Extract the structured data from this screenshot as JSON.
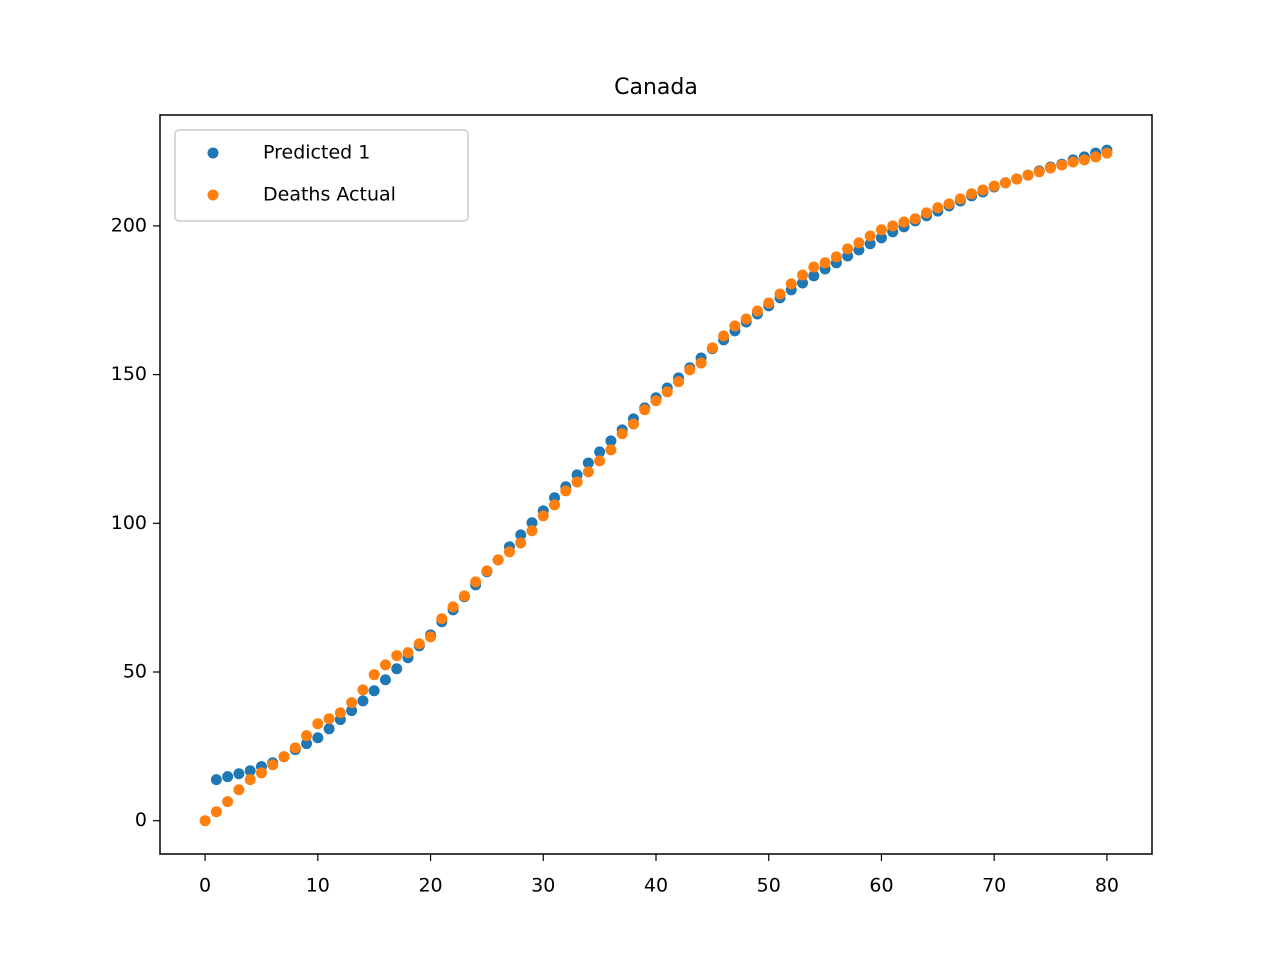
{
  "chart_data": {
    "type": "scatter",
    "title": "Canada",
    "xlim": [
      -4,
      84
    ],
    "xticks": [
      0,
      10,
      20,
      30,
      40,
      50,
      60,
      70,
      80
    ],
    "ylim": [
      -11.2,
      237.3
    ],
    "yticks": [
      0,
      50,
      100,
      150,
      200
    ],
    "legend": "upper left",
    "series": [
      {
        "name": "Predicted 1",
        "color": "#1f77b4",
        "x": [
          1,
          2,
          3,
          4,
          5,
          6,
          7,
          8,
          9,
          10,
          11,
          12,
          13,
          14,
          15,
          16,
          17,
          18,
          19,
          20,
          21,
          22,
          23,
          24,
          25,
          26,
          27,
          28,
          29,
          30,
          31,
          32,
          33,
          34,
          35,
          36,
          37,
          38,
          39,
          40,
          41,
          42,
          43,
          44,
          45,
          46,
          47,
          48,
          49,
          50,
          51,
          52,
          53,
          54,
          55,
          56,
          57,
          58,
          59,
          60,
          61,
          62,
          63,
          64,
          65,
          66,
          67,
          68,
          69,
          70,
          71,
          72,
          73,
          74,
          75,
          76,
          77,
          78,
          79,
          80
        ],
        "values": [
          13.8,
          14.8,
          15.8,
          16.8,
          18.2,
          19.5,
          21.5,
          23.9,
          25.9,
          27.9,
          30.9,
          34,
          37,
          40.3,
          43.7,
          47.4,
          51.1,
          54.8,
          58.8,
          62.5,
          66.9,
          70.9,
          75.3,
          79.3,
          83.7,
          87.7,
          92.1,
          96.1,
          100.2,
          104.2,
          108.6,
          112.3,
          116.3,
          120.3,
          124,
          127.7,
          131.4,
          135.1,
          138.8,
          142.2,
          145.5,
          148.9,
          152.3,
          155.6,
          158.7,
          161.7,
          164.7,
          167.7,
          170.4,
          173.1,
          175.8,
          178.5,
          180.8,
          183.2,
          185.5,
          187.6,
          189.9,
          191.9,
          194,
          196,
          198,
          199.7,
          201.7,
          203.4,
          205,
          206.7,
          208.4,
          210.1,
          211.4,
          213.1,
          214.5,
          215.8,
          217.1,
          218.5,
          219.8,
          220.8,
          222.2,
          223.2,
          224.5,
          225.5
        ]
      },
      {
        "name": "Deaths Actual",
        "color": "#ff7f0e",
        "x": [
          0,
          1,
          2,
          3,
          4,
          5,
          6,
          7,
          8,
          9,
          10,
          11,
          12,
          13,
          14,
          15,
          16,
          17,
          18,
          19,
          20,
          21,
          22,
          23,
          24,
          25,
          26,
          27,
          28,
          29,
          30,
          31,
          32,
          33,
          34,
          35,
          36,
          37,
          38,
          39,
          40,
          41,
          42,
          43,
          44,
          45,
          46,
          47,
          48,
          49,
          50,
          51,
          52,
          53,
          54,
          55,
          56,
          57,
          58,
          59,
          60,
          61,
          62,
          63,
          64,
          65,
          66,
          67,
          68,
          69,
          70,
          71,
          72,
          73,
          74,
          75,
          76,
          77,
          78,
          79,
          80
        ],
        "values": [
          0,
          3,
          6.4,
          10.4,
          13.8,
          16.1,
          18.8,
          21.5,
          24.5,
          28.6,
          32.6,
          34.3,
          36.3,
          39.7,
          44,
          49.1,
          52.4,
          55.5,
          56.5,
          59.5,
          61.8,
          67.9,
          71.9,
          75.6,
          80.3,
          84,
          87.7,
          90.4,
          93.4,
          97.5,
          102.5,
          106.2,
          110.9,
          113.9,
          117.3,
          121,
          124.7,
          130.1,
          133.4,
          138.2,
          141.2,
          144.2,
          147.6,
          151.6,
          153.9,
          159,
          163,
          166.4,
          168.7,
          171.4,
          174.1,
          177.1,
          180.5,
          183.5,
          186.2,
          187.6,
          189.6,
          192.3,
          194.3,
          196.6,
          198.7,
          200,
          201.3,
          202.4,
          204.4,
          206.1,
          207.4,
          209.1,
          210.8,
          212.1,
          213.4,
          214.5,
          215.8,
          217.1,
          218.2,
          219.5,
          220.5,
          221.5,
          222.2,
          223.2,
          224.5
        ]
      }
    ]
  }
}
